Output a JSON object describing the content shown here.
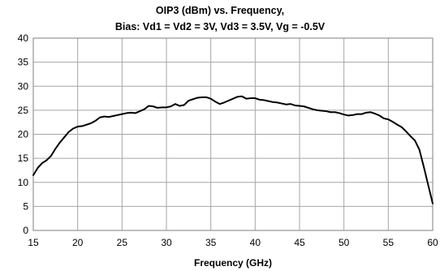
{
  "chart_data": {
    "type": "line",
    "title_lines": [
      "OIP3 (dBm) vs. Frequency,",
      "Bias: Vd1 = Vd2 = 3V, Vd3 = 3.5V, Vg = -0.5V"
    ],
    "xlabel": "Frequency (GHz)",
    "ylabel": "",
    "xlim": [
      15,
      60
    ],
    "ylim": [
      0,
      40
    ],
    "x_ticks": [
      "15",
      "20",
      "25",
      "30",
      "35",
      "40",
      "45",
      "50",
      "55",
      "60"
    ],
    "y_ticks": [
      "0",
      "5",
      "10",
      "15",
      "20",
      "25",
      "30",
      "35",
      "40"
    ],
    "grid": true,
    "legend": "none",
    "line_color": "#000000",
    "series": [
      {
        "x": [
          15,
          15.5,
          16,
          16.5,
          17,
          17.5,
          18,
          18.5,
          19,
          19.5,
          20,
          20.5,
          21,
          21.5,
          22,
          22.5,
          23,
          23.5,
          24,
          24.5,
          25,
          25.5,
          26,
          26.5,
          27,
          27.5,
          28,
          28.5,
          29,
          29.5,
          30,
          30.5,
          31,
          31.5,
          32,
          32.5,
          33,
          33.5,
          34,
          34.5,
          35,
          35.5,
          36,
          36.5,
          37,
          37.5,
          38,
          38.5,
          39,
          39.5,
          40,
          40.5,
          41,
          41.5,
          42,
          42.5,
          43,
          43.5,
          44,
          44.5,
          45,
          45.5,
          46,
          46.5,
          47,
          47.5,
          48,
          48.5,
          49,
          49.5,
          50,
          50.5,
          51,
          51.5,
          52,
          52.5,
          53,
          53.5,
          54,
          54.5,
          55,
          55.5,
          56,
          56.5,
          57,
          57.5,
          58,
          58.5,
          59,
          59.5,
          60
        ],
        "values": [
          11.5,
          13.0,
          14.0,
          14.6,
          15.5,
          17.0,
          18.3,
          19.4,
          20.5,
          21.2,
          21.6,
          21.7,
          22.0,
          22.3,
          22.8,
          23.5,
          23.7,
          23.6,
          23.8,
          24.0,
          24.2,
          24.4,
          24.5,
          24.4,
          24.8,
          25.2,
          25.9,
          25.8,
          25.5,
          25.6,
          25.6,
          25.8,
          26.3,
          25.9,
          26.1,
          27.0,
          27.3,
          27.6,
          27.7,
          27.7,
          27.4,
          26.8,
          26.3,
          26.6,
          27.0,
          27.4,
          27.8,
          27.9,
          27.4,
          27.5,
          27.5,
          27.2,
          27.1,
          26.9,
          26.7,
          26.6,
          26.4,
          26.2,
          26.3,
          26.0,
          25.9,
          25.8,
          25.5,
          25.2,
          25.0,
          24.9,
          24.8,
          24.6,
          24.6,
          24.4,
          24.1,
          23.9,
          24.0,
          24.2,
          24.2,
          24.5,
          24.6,
          24.3,
          23.9,
          23.3,
          23.1,
          22.6,
          22.0,
          21.5,
          20.6,
          19.6,
          18.7,
          16.8,
          13.2,
          9.4,
          5.6
        ]
      }
    ]
  }
}
